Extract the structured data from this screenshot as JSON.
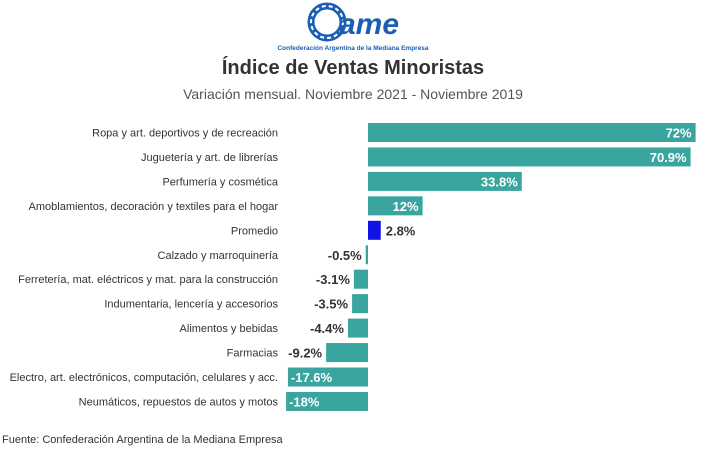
{
  "logo": {
    "mark": "CAME",
    "caption": "Confederación Argentina de la Mediana Empresa",
    "color": "#1a5fb4"
  },
  "chart_data": {
    "type": "bar",
    "orientation": "horizontal",
    "title": "Índice de Ventas Minoristas",
    "subtitle": "Variación mensual. Noviembre 2021 - Noviembre 2019",
    "categories": [
      "Ropa y art. deportivos y de recreación",
      "Juguetería y art. de librerías",
      "Perfumería y cosmética",
      "Amoblamientos, decoración y textiles para el hogar",
      "Promedio",
      "Calzado y marroquinería",
      "Ferretería, mat. eléctricos y mat. para  la construcción",
      "Indumentaria, lencería y accesorios",
      "Alimentos y bebidas",
      "Farmacias",
      "Electro, art. electrónicos, computación, celulares y acc.",
      "Neumáticos, repuestos de autos y motos"
    ],
    "values": [
      72,
      70.9,
      33.8,
      12,
      2.8,
      -0.5,
      -3.1,
      -3.5,
      -4.4,
      -9.2,
      -17.6,
      -18
    ],
    "value_labels": [
      "72%",
      "70.9%",
      "33.8%",
      "12%",
      "2.8%",
      "-0.5%",
      "-3.1%",
      "-3.5%",
      "-4.4%",
      "-9.2%",
      "-17.6%",
      "-18%"
    ],
    "highlight_category": "Promedio",
    "xlim": [
      -18,
      72
    ],
    "colors": {
      "bar": "#3aa49f",
      "highlight": "#1212e6"
    }
  },
  "footnote": "Fuente: Confederación Argentina de la Mediana Empresa"
}
